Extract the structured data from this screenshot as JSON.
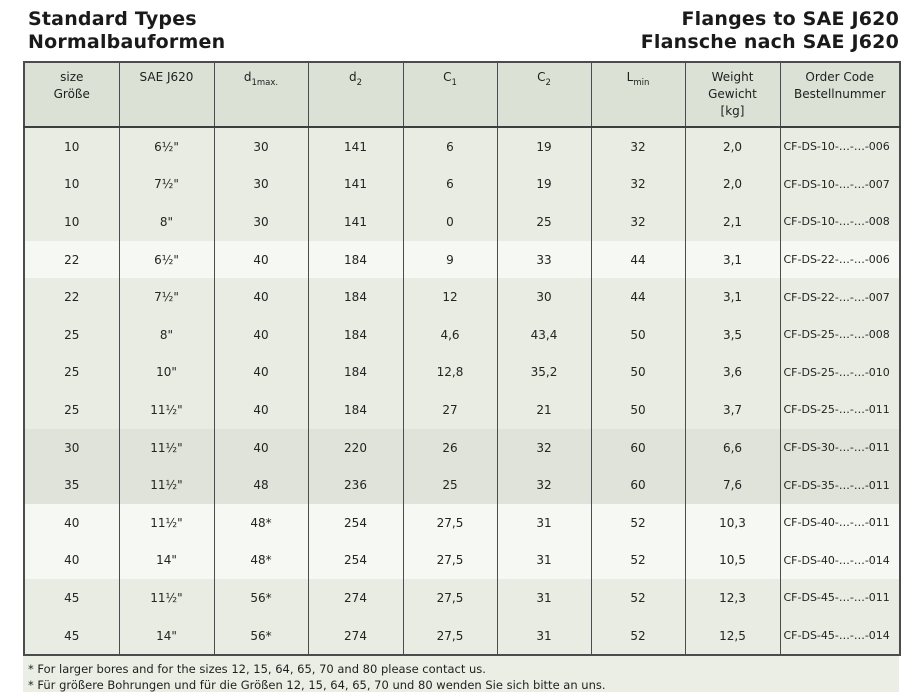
{
  "page": {
    "title_left_line1": "Standard Types",
    "title_left_line2": "Normalbauformen",
    "title_right_line1": "Flanges to SAE J620",
    "title_right_line2": "Flansche nach SAE J620"
  },
  "table": {
    "columns": [
      {
        "id": "size",
        "lines": [
          "size",
          "Größe"
        ]
      },
      {
        "id": "sae",
        "lines": [
          "SAE J620"
        ]
      },
      {
        "id": "d1",
        "base": "d",
        "sub": "1max."
      },
      {
        "id": "d2",
        "base": "d",
        "sub": "2"
      },
      {
        "id": "c1",
        "base": "C",
        "sub": "1"
      },
      {
        "id": "c2",
        "base": "C",
        "sub": "2"
      },
      {
        "id": "lmin",
        "base": "L",
        "sub": "min"
      },
      {
        "id": "weight",
        "lines": [
          "Weight",
          "Gewicht",
          "[kg]"
        ]
      },
      {
        "id": "order",
        "lines": [
          "Order Code",
          "Bestellnummer"
        ]
      }
    ],
    "rows": [
      {
        "size": "10",
        "sae": "6½\"",
        "d1": "30",
        "d2": "141",
        "c1": "6",
        "c2": "19",
        "lmin": "32",
        "weight": "2,0",
        "order": "CF-DS-10-…-…-006",
        "shade": "green"
      },
      {
        "size": "10",
        "sae": "7½\"",
        "d1": "30",
        "d2": "141",
        "c1": "6",
        "c2": "19",
        "lmin": "32",
        "weight": "2,0",
        "order": "CF-DS-10-…-…-007",
        "shade": "green"
      },
      {
        "size": "10",
        "sae": "8\"",
        "d1": "30",
        "d2": "141",
        "c1": "0",
        "c2": "25",
        "lmin": "32",
        "weight": "2,1",
        "order": "CF-DS-10-…-…-008",
        "shade": "green"
      },
      {
        "size": "22",
        "sae": "6½\"",
        "d1": "40",
        "d2": "184",
        "c1": "9",
        "c2": "33",
        "lmin": "44",
        "weight": "3,1",
        "order": "CF-DS-22-…-…-006",
        "shade": "white"
      },
      {
        "size": "22",
        "sae": "7½\"",
        "d1": "40",
        "d2": "184",
        "c1": "12",
        "c2": "30",
        "lmin": "44",
        "weight": "3,1",
        "order": "CF-DS-22-…-…-007",
        "shade": "green"
      },
      {
        "size": "25",
        "sae": "8\"",
        "d1": "40",
        "d2": "184",
        "c1": "4,6",
        "c2": "43,4",
        "lmin": "50",
        "weight": "3,5",
        "order": "CF-DS-25-…-…-008",
        "shade": "green"
      },
      {
        "size": "25",
        "sae": "10\"",
        "d1": "40",
        "d2": "184",
        "c1": "12,8",
        "c2": "35,2",
        "lmin": "50",
        "weight": "3,6",
        "order": "CF-DS-25-…-…-010",
        "shade": "green"
      },
      {
        "size": "25",
        "sae": "11½\"",
        "d1": "40",
        "d2": "184",
        "c1": "27",
        "c2": "21",
        "lmin": "50",
        "weight": "3,7",
        "order": "CF-DS-25-…-…-011",
        "shade": "green"
      },
      {
        "size": "30",
        "sae": "11½\"",
        "d1": "40",
        "d2": "220",
        "c1": "26",
        "c2": "32",
        "lmin": "60",
        "weight": "6,6",
        "order": "CF-DS-30-…-…-011",
        "shade": "dark"
      },
      {
        "size": "35",
        "sae": "11½\"",
        "d1": "48",
        "d2": "236",
        "c1": "25",
        "c2": "32",
        "lmin": "60",
        "weight": "7,6",
        "order": "CF-DS-35-…-…-011",
        "shade": "dark"
      },
      {
        "size": "40",
        "sae": "11½\"",
        "d1": "48*",
        "d2": "254",
        "c1": "27,5",
        "c2": "31",
        "lmin": "52",
        "weight": "10,3",
        "order": "CF-DS-40-…-…-011",
        "shade": "white"
      },
      {
        "size": "40",
        "sae": "14\"",
        "d1": "48*",
        "d2": "254",
        "c1": "27,5",
        "c2": "31",
        "lmin": "52",
        "weight": "10,5",
        "order": "CF-DS-40-…-…-014",
        "shade": "white"
      },
      {
        "size": "45",
        "sae": "11½\"",
        "d1": "56*",
        "d2": "274",
        "c1": "27,5",
        "c2": "31",
        "lmin": "52",
        "weight": "12,3",
        "order": "CF-DS-45-…-…-011",
        "shade": "green"
      },
      {
        "size": "45",
        "sae": "14\"",
        "d1": "56*",
        "d2": "274",
        "c1": "27,5",
        "c2": "31",
        "lmin": "52",
        "weight": "12,5",
        "order": "CF-DS-45-…-…-014",
        "shade": "green"
      }
    ]
  },
  "footnotes": [
    "* For larger bores and for the sizes 12, 15, 64, 65, 70 and 80 please contact us.",
    "* Für größere Bohrungen und für die Größen 12, 15, 64, 65, 70 und 80 wenden Sie sich bitte an uns."
  ],
  "colors": {
    "band_green": "#e9ece3",
    "band_white": "#f6f8f3",
    "band_dark": "#dfe3d9",
    "header_bg": "#dce1d5",
    "footnote_bg": "#ebeee5",
    "border": "#4c4c4e",
    "text": "#1f1f1f"
  }
}
